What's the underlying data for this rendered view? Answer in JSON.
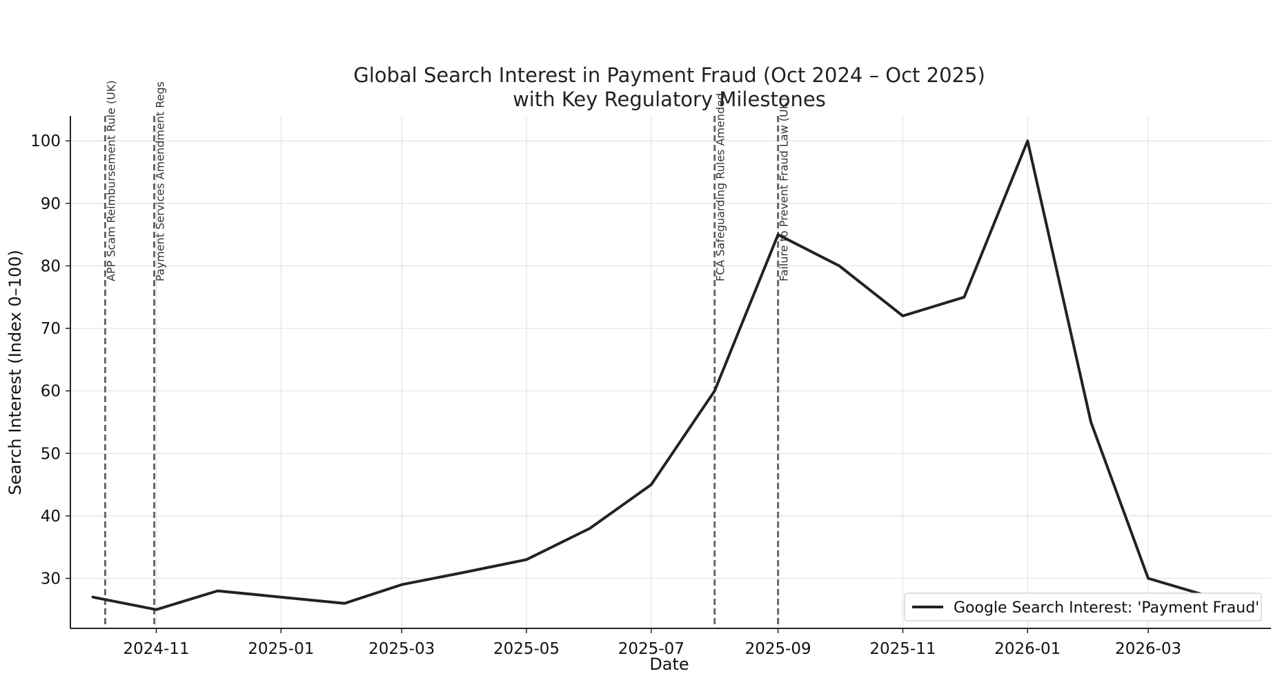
{
  "chart_data": {
    "type": "line",
    "title_line1": "Global Search Interest in Payment Fraud (Oct 2024 – Oct 2025)",
    "title_line2": "with Key Regulatory Milestones",
    "xlabel": "Date",
    "ylabel": "Search Interest (Index 0–100)",
    "x_ticks": [
      "2024-11",
      "2025-01",
      "2025-03",
      "2025-05",
      "2025-07",
      "2025-09",
      "2025-11",
      "2026-01",
      "2026-03"
    ],
    "y_ticks": [
      30,
      40,
      50,
      60,
      70,
      80,
      90,
      100
    ],
    "xlim": [
      "2024-09-20",
      "2026-04-30"
    ],
    "ylim": [
      22,
      104
    ],
    "grid": true,
    "legend_position": "bottom-right",
    "series": [
      {
        "name": "Google Search Interest: 'Payment Fraud'",
        "color": "#222222",
        "points": [
          {
            "x": "2024-10-01",
            "y": 27
          },
          {
            "x": "2024-11-01",
            "y": 25
          },
          {
            "x": "2024-12-01",
            "y": 28
          },
          {
            "x": "2025-01-01",
            "y": 27
          },
          {
            "x": "2025-02-01",
            "y": 26
          },
          {
            "x": "2025-03-01",
            "y": 29
          },
          {
            "x": "2025-04-01",
            "y": 31
          },
          {
            "x": "2025-05-01",
            "y": 33
          },
          {
            "x": "2025-06-01",
            "y": 38
          },
          {
            "x": "2025-07-01",
            "y": 45
          },
          {
            "x": "2025-08-01",
            "y": 60
          },
          {
            "x": "2025-09-01",
            "y": 85
          },
          {
            "x": "2025-10-01",
            "y": 80
          },
          {
            "x": "2025-11-01",
            "y": 72
          },
          {
            "x": "2025-12-01",
            "y": 75
          },
          {
            "x": "2026-01-01",
            "y": 100
          },
          {
            "x": "2026-02-01",
            "y": 55
          },
          {
            "x": "2026-03-01",
            "y": 30
          },
          {
            "x": "2026-04-01",
            "y": 27
          }
        ]
      }
    ],
    "milestones": [
      {
        "date": "2024-10-07",
        "label": "APP Scam Reimbursement Rule (UK)"
      },
      {
        "date": "2024-10-31",
        "label": "Payment Services Amendment Regs"
      },
      {
        "date": "2025-08-01",
        "label": "FCA Safeguarding Rules Amended"
      },
      {
        "date": "2025-09-01",
        "label": "Failure to Prevent Fraud Law (UK)"
      }
    ]
  }
}
